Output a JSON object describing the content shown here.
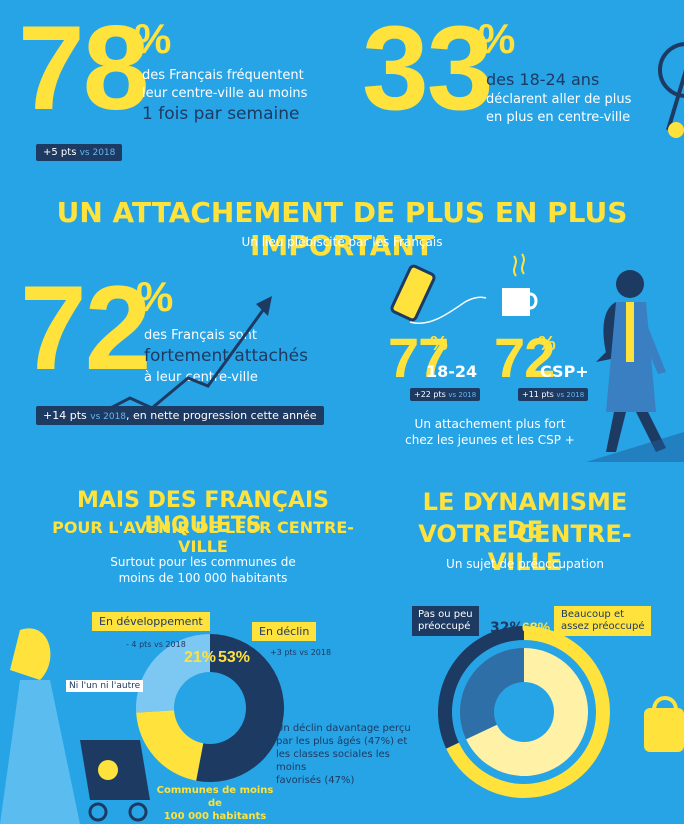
{
  "stat78": {
    "number": "78",
    "percent": "%",
    "line1": "des Français fréquentent",
    "line2": "leur centre-ville au moins",
    "line3": "1 fois par semaine",
    "badge_main": "+5 pts",
    "badge_vs": "vs 2018"
  },
  "stat33": {
    "number": "33",
    "percent": "%",
    "line1": "des 18-24 ans",
    "line2": "déclarent aller de plus",
    "line3": "en plus en centre-ville"
  },
  "section1": {
    "title": "UN ATTACHEMENT DE PLUS EN PLUS IMPORTANT",
    "subtitle": "Un lieu plébiscité par les Français"
  },
  "stat72": {
    "number": "72",
    "percent": "%",
    "line1": "des Français sont",
    "line2": "fortement attachés",
    "line3": "à leur centre-ville",
    "badge_main": "+14 pts",
    "badge_vs": "vs 2018",
    "badge_rest": ", en nette progression cette année"
  },
  "stat77": {
    "number": "77",
    "percent": "%",
    "label": "18-24",
    "badge_main": "+22 pts",
    "badge_vs": "vs 2018"
  },
  "stat72csp": {
    "number": "72",
    "percent": "%",
    "label": "CSP+",
    "badge_main": "+11 pts",
    "badge_vs": "vs 2018"
  },
  "attachment_note": {
    "line1": "Un attachement plus fort",
    "line2": "chez les jeunes et les CSP +"
  },
  "section2": {
    "title_line1": "MAIS DES FRANÇAIS INQUIETS",
    "title_line2": "POUR L'AVENIR DE LEUR CENTRE-VILLE",
    "sub_line1": "Surtout pour les communes de",
    "sub_line2": "moins de 100 000 habitants"
  },
  "section3": {
    "title_line1": "LE DYNAMISME DE",
    "title_line2": "VOTRE CENTRE-VILLE",
    "subtitle": "Un sujet de préoccupation"
  },
  "donut1": {
    "en_developpement": "En développement",
    "en_declin": "En déclin",
    "dev_change": "- 4 pts vs 2018",
    "decl_change": "+3 pts vs 2018",
    "pct_dev": "21%",
    "pct_decl": "53%",
    "ni_lun": "Ni l'un ni l'autre",
    "note_line1": "Un déclin davantage perçu",
    "note_line2": "par les plus âgés (47%) et",
    "note_line3": "les classes sociales les moins",
    "note_line4": "favorisés (47%)",
    "communes_line1": "Communes de moins de",
    "communes_line2": "100 000 habitants"
  },
  "donut2": {
    "pas_line1": "Pas ou peu",
    "pas_line2": "préoccupé",
    "beau_line1": "Beaucoup et",
    "beau_line2": "assez préoccupé",
    "pct_pas": "32%",
    "pct_beau": "68%"
  },
  "chart_data": [
    {
      "type": "pie",
      "title": "",
      "categories": [
        "En déclin",
        "En développement",
        "Ni l'un ni l'autre"
      ],
      "values": [
        53,
        21,
        26
      ]
    },
    {
      "type": "pie",
      "title": "",
      "categories": [
        "Beaucoup et assez préoccupé",
        "Pas ou peu préoccupé"
      ],
      "values": [
        68,
        32
      ]
    }
  ],
  "colors": {
    "background": "#27a4e6",
    "accent_yellow": "#ffe23b",
    "navy": "#1d3a63",
    "light_blue": "#7cc8f3",
    "pale_yellow": "#fff2a6"
  }
}
